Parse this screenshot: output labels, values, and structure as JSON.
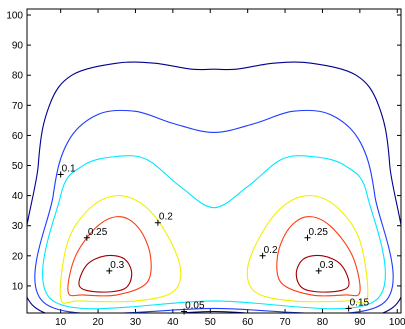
{
  "chart_data": {
    "type": "contour",
    "xlim": [
      1,
      101
    ],
    "ylim": [
      1,
      102
    ],
    "xticks": [
      10,
      20,
      30,
      40,
      50,
      60,
      70,
      80,
      90,
      100
    ],
    "yticks": [
      10,
      20,
      30,
      40,
      50,
      60,
      70,
      80,
      90,
      100
    ],
    "contours": [
      {
        "color": "#00008f",
        "x": [
          3,
          4,
          7,
          13,
          25,
          35,
          45,
          51,
          57,
          67,
          77,
          89,
          95,
          98,
          99,
          51
        ],
        "y": [
          3,
          50,
          70,
          80,
          84,
          84,
          82,
          82,
          82,
          84,
          84,
          80,
          70,
          50,
          3,
          1.5
        ]
      },
      {
        "color": "#1f3cff",
        "x": [
          6,
          8,
          12,
          20,
          30,
          40,
          51,
          62,
          72,
          82,
          90,
          94,
          96,
          51
        ],
        "y": [
          4,
          40,
          58,
          67,
          68,
          64,
          61,
          64,
          68,
          67,
          58,
          40,
          4,
          2.5
        ]
      },
      {
        "color": "#00e8ff",
        "x": [
          8,
          10,
          16,
          25,
          33,
          42,
          51,
          60,
          69,
          77,
          86,
          92,
          94,
          51
        ],
        "y": [
          5,
          40,
          50,
          53,
          52,
          43,
          36,
          43,
          52,
          53,
          50,
          40,
          5,
          5
        ]
      },
      {
        "color": "#f0f000",
        "x": [
          10,
          12,
          18,
          25,
          32,
          38,
          42,
          40,
          30,
          15
        ],
        "y": [
          6,
          25,
          36,
          40,
          37,
          28,
          16,
          8,
          5,
          5
        ]
      },
      {
        "color": "#f0f000",
        "x": [
          92,
          90,
          84,
          77,
          70,
          64,
          60,
          62,
          72,
          87
        ],
        "y": [
          6,
          25,
          36,
          40,
          37,
          28,
          16,
          8,
          5,
          5
        ]
      },
      {
        "color": "#ff3a10",
        "x": [
          12,
          14,
          20,
          26,
          31,
          34,
          33,
          25,
          16
        ],
        "y": [
          8,
          20,
          30,
          33,
          29,
          20,
          11,
          7,
          7
        ]
      },
      {
        "color": "#ff3a10",
        "x": [
          90,
          88,
          82,
          76,
          71,
          68,
          69,
          77,
          86
        ],
        "y": [
          8,
          20,
          30,
          33,
          29,
          20,
          11,
          7,
          7
        ]
      },
      {
        "color": "#a00000",
        "x": [
          15,
          17,
          22,
          27,
          29,
          27,
          20
        ],
        "y": [
          10,
          17,
          20,
          19,
          14,
          9,
          8
        ]
      },
      {
        "color": "#a00000",
        "x": [
          87,
          85,
          80,
          75,
          73,
          75,
          82
        ],
        "y": [
          10,
          17,
          20,
          19,
          14,
          9,
          8
        ]
      }
    ],
    "labels": [
      {
        "value": 0.1,
        "x": 10,
        "y": 47
      },
      {
        "value": 0.25,
        "x": 17,
        "y": 26
      },
      {
        "value": 0.2,
        "x": 36,
        "y": 31
      },
      {
        "value": 0.3,
        "x": 23,
        "y": 15
      },
      {
        "value": 0.05,
        "x": 43,
        "y": 1.5
      },
      {
        "value": 0.2,
        "x": 64,
        "y": 20
      },
      {
        "value": 0.25,
        "x": 76,
        "y": 26
      },
      {
        "value": 0.3,
        "x": 79,
        "y": 15
      },
      {
        "value": 0.15,
        "x": 87,
        "y": 2.5
      }
    ]
  }
}
